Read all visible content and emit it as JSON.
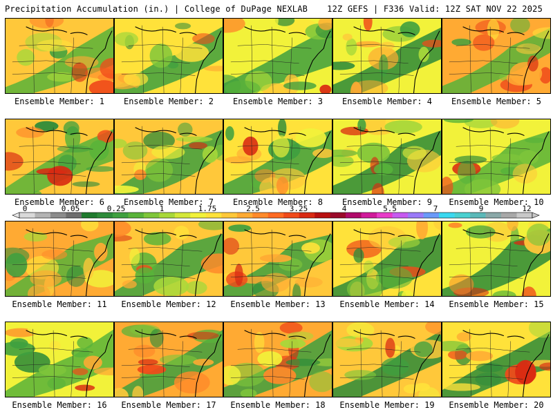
{
  "header": {
    "title_left": "Precipitation Accumulation (in.) | College of DuPage NEXLAB",
    "title_right": "12Z GEFS | F336 Valid: 12Z SAT NOV 22 2025"
  },
  "colorbar": {
    "tick_labels": [
      "0",
      "0.05",
      "0.25",
      "1",
      "1.75",
      "2.5",
      "3.25",
      "4",
      "5.5",
      "7",
      "9",
      "12"
    ],
    "colors": [
      "#d9d9d9",
      "#b3b3b3",
      "#8c8c8c",
      "#6e6e6e",
      "#207a2e",
      "#2e8b3a",
      "#3fa03f",
      "#59b33a",
      "#7fc63a",
      "#a8d83a",
      "#d4e83a",
      "#f2f23a",
      "#ffe23a",
      "#ffc83a",
      "#ffaa33",
      "#ff8a2a",
      "#ff6a22",
      "#f04a1a",
      "#d92a12",
      "#b81010",
      "#9a0a2a",
      "#b00a6a",
      "#d01a9a",
      "#e83ac8",
      "#c65af0",
      "#9a7af8",
      "#6a9af8",
      "#3ad8f0",
      "#4ad0d0",
      "#5ab8b8",
      "#8aa8a8",
      "#a8a8a8",
      "#c8c8c8"
    ]
  },
  "panels": [
    {
      "caption": "Ensemble Member: 1",
      "seed": 1
    },
    {
      "caption": "Ensemble Member: 2",
      "seed": 2
    },
    {
      "caption": "Ensemble Member: 3",
      "seed": 3
    },
    {
      "caption": "Ensemble Member: 4",
      "seed": 4
    },
    {
      "caption": "Ensemble Member: 5",
      "seed": 5
    },
    {
      "caption": "Ensemble Member: 6",
      "seed": 6
    },
    {
      "caption": "Ensemble Member: 7",
      "seed": 7
    },
    {
      "caption": "Ensemble Member: 8",
      "seed": 8
    },
    {
      "caption": "Ensemble Member: 9",
      "seed": 9
    },
    {
      "caption": "Ensemble Member: 10",
      "seed": 10
    },
    {
      "caption": "Ensemble Member: 11",
      "seed": 11
    },
    {
      "caption": "Ensemble Member: 12",
      "seed": 12
    },
    {
      "caption": "Ensemble Member: 13",
      "seed": 13
    },
    {
      "caption": "Ensemble Member: 14",
      "seed": 14
    },
    {
      "caption": "Ensemble Member: 15",
      "seed": 15
    },
    {
      "caption": "Ensemble Member: 16",
      "seed": 16
    },
    {
      "caption": "Ensemble Member: 17",
      "seed": 17
    },
    {
      "caption": "Ensemble Member: 18",
      "seed": 18
    },
    {
      "caption": "Ensemble Member: 19",
      "seed": 19
    },
    {
      "caption": "Ensemble Member: 20",
      "seed": 20
    }
  ]
}
